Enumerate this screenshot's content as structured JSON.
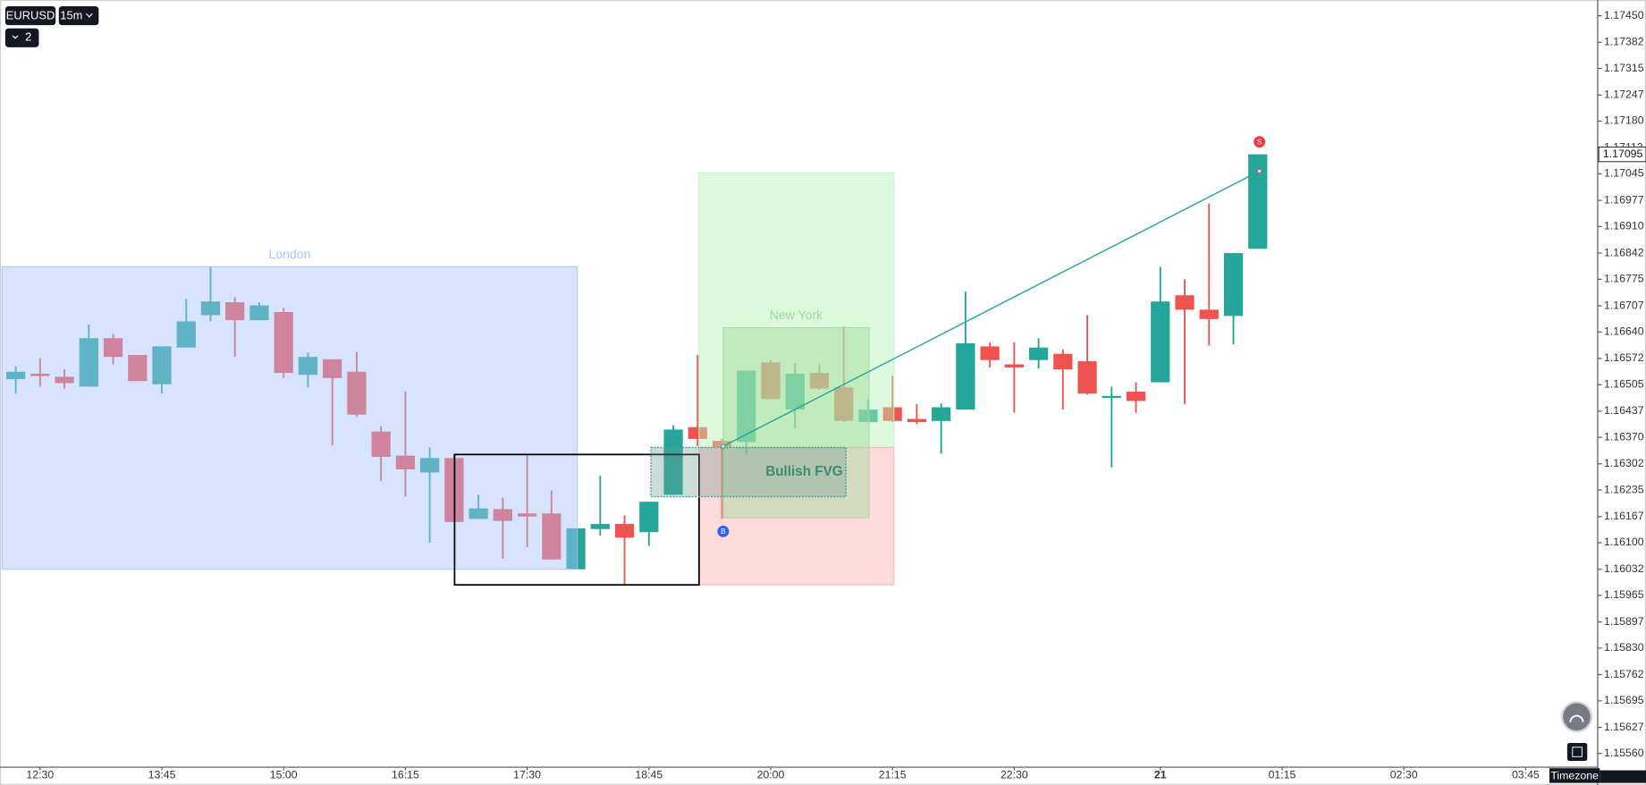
{
  "ui": {
    "symbol": "EURUSD",
    "interval": "15m",
    "indicators_count": 2,
    "timezone": "Timezone"
  },
  "chart_data": {
    "type": "candlestick",
    "open": [
      1.16519,
      1.16533,
      1.16525,
      1.165,
      1.16624,
      1.16581,
      1.16506,
      1.166,
      1.16683,
      1.16716,
      1.1667,
      1.16691,
      1.1653,
      1.1657,
      1.16538,
      1.16385,
      1.16323,
      1.1628,
      1.16317,
      1.16161,
      1.16186,
      1.16175,
      1.16175,
      1.16032,
      1.16135,
      1.16148,
      1.16127,
      1.16223,
      1.16396,
      1.16361,
      1.16358,
      1.16562,
      1.16441,
      1.16535,
      1.16498,
      1.16409,
      1.16447,
      1.16417,
      1.16412,
      1.16441,
      1.16603,
      1.16557,
      1.16568,
      1.16584,
      1.16565,
      1.16471,
      1.16487,
      1.16511,
      1.16734,
      1.16697,
      1.16681,
      1.16853
    ],
    "high": [
      1.16552,
      1.16573,
      1.16544,
      1.16659,
      1.16635,
      1.16581,
      1.16603,
      1.16724,
      1.16807,
      1.16729,
      1.16716,
      1.16702,
      1.16587,
      1.1657,
      1.16589,
      1.16398,
      1.16487,
      1.16344,
      1.16326,
      1.16223,
      1.16215,
      1.16326,
      1.16234,
      1.16137,
      1.16272,
      1.1617,
      1.16205,
      1.16401,
      1.16581,
      1.16366,
      1.16541,
      1.16568,
      1.1656,
      1.16557,
      1.16654,
      1.16466,
      1.16527,
      1.16455,
      1.16457,
      1.16743,
      1.16613,
      1.16613,
      1.16624,
      1.16595,
      1.16683,
      1.165,
      1.16511,
      1.16807,
      1.16775,
      1.16969,
      1.16842,
      1.17095
    ],
    "low": [
      1.16482,
      1.165,
      1.16495,
      1.165,
      1.16557,
      1.16514,
      1.16482,
      1.166,
      1.16667,
      1.16576,
      1.1667,
      1.16522,
      1.16498,
      1.1635,
      1.16422,
      1.16258,
      1.16218,
      1.161,
      1.16153,
      1.16161,
      1.16059,
      1.16089,
      1.16057,
      1.16032,
      1.16118,
      1.15992,
      1.16092,
      1.16223,
      1.16347,
      1.16161,
      1.16326,
      1.16468,
      1.16393,
      1.16492,
      1.16409,
      1.16409,
      1.16409,
      1.16404,
      1.16328,
      1.16441,
      1.16549,
      1.16433,
      1.16546,
      1.16441,
      1.16479,
      1.16293,
      1.16433,
      1.16511,
      1.16455,
      1.16605,
      1.16608,
      1.16853
    ],
    "close": [
      1.16538,
      1.16527,
      1.16509,
      1.16624,
      1.16576,
      1.16514,
      1.16603,
      1.16667,
      1.16718,
      1.1667,
      1.16708,
      1.16535,
      1.16576,
      1.16522,
      1.16428,
      1.1632,
      1.16288,
      1.16317,
      1.16153,
      1.16188,
      1.16156,
      1.16167,
      1.16057,
      1.16137,
      1.16148,
      1.16113,
      1.16205,
      1.1639,
      1.16366,
      1.16344,
      1.16541,
      1.16468,
      1.16533,
      1.16495,
      1.16412,
      1.16441,
      1.16412,
      1.16409,
      1.16447,
      1.16611,
      1.16568,
      1.16549,
      1.166,
      1.16544,
      1.16482,
      1.16476,
      1.16463,
      1.16718,
      1.16697,
      1.16673,
      1.16842,
      1.17095
    ],
    "up_color": "#26a69a",
    "down_color": "#ef5350",
    "xlim": [
      -0.56,
      64.96
    ],
    "xticks": [
      {
        "value": 1,
        "label": "12:30"
      },
      {
        "value": 6,
        "label": "13:45"
      },
      {
        "value": 11,
        "label": "15:00"
      },
      {
        "value": 16,
        "label": "16:15"
      },
      {
        "value": 21,
        "label": "17:30"
      },
      {
        "value": 26,
        "label": "18:45"
      },
      {
        "value": 31,
        "label": "20:00"
      },
      {
        "value": 36,
        "label": "21:15"
      },
      {
        "value": 41,
        "label": "22:30"
      },
      {
        "value": 47,
        "label": "21"
      },
      {
        "value": 52,
        "label": "01:15"
      },
      {
        "value": 57,
        "label": "02:30"
      },
      {
        "value": 62,
        "label": "03:45"
      }
    ],
    "ylim": [
      1.15525,
      1.17485
    ],
    "yticks": [
      {
        "value": 1.1745,
        "label": "1.17450"
      },
      1.17382,
      1.17315,
      1.17247,
      {
        "value": 1.1718,
        "label": "1.17180"
      },
      1.17112,
      1.17045,
      1.16977,
      {
        "value": 1.1691,
        "label": "1.16910"
      },
      1.16842,
      1.16775,
      1.16707,
      {
        "value": 1.1664,
        "label": "1.16640"
      },
      1.16572,
      1.16505,
      1.16437,
      {
        "value": 1.1637,
        "label": "1.16370"
      },
      1.16302,
      1.16235,
      1.16167,
      {
        "value": 1.161,
        "label": "1.16100"
      },
      1.16032,
      1.15965,
      1.15897,
      {
        "value": 1.1583,
        "label": "1.15830"
      },
      1.15762,
      1.15695,
      1.15627,
      {
        "value": 1.1556,
        "label": "1.15560"
      }
    ],
    "last_price": 1.17095,
    "zones": [
      {
        "label": "London",
        "x": [
          -0.56,
          23.06
        ],
        "y": [
          1.16032,
          1.16807
        ],
        "color": "#a9c0fa"
      },
      {
        "x": [
          28.06,
          36.06
        ],
        "y": [
          1.16344,
          1.17047
        ],
        "color": "#b6f5b6"
      },
      {
        "x": [
          28.06,
          36.06
        ],
        "y": [
          1.15992,
          1.16344
        ],
        "color": "#ffb0b0"
      },
      {
        "label": "New York",
        "x": [
          29.05,
          35.04
        ],
        "y": [
          1.16164,
          1.16651
        ],
        "color": "#9ed99a"
      },
      {
        "x": [
          18.02,
          28.06
        ],
        "y": [
          1.15992,
          1.16326
        ],
        "color": "#000000",
        "style": "outline"
      },
      {
        "label": "Bullish FVG",
        "x": [
          26.08,
          34.09
        ],
        "y": [
          1.16218,
          1.16344
        ],
        "color": "#26a69a",
        "style": "dotted"
      }
    ],
    "lines": [
      {
        "x": [
          29.05,
          51.07
        ],
        "y": [
          1.16347,
          1.17052
        ],
        "color": "#26a69a"
      }
    ],
    "signals": [
      {
        "label": "B",
        "x": 29.05,
        "y": 1.16129,
        "color": "#2962ff"
      },
      {
        "label": "S",
        "x": 51.07,
        "y": 1.17127,
        "color": "#f23645"
      }
    ]
  }
}
